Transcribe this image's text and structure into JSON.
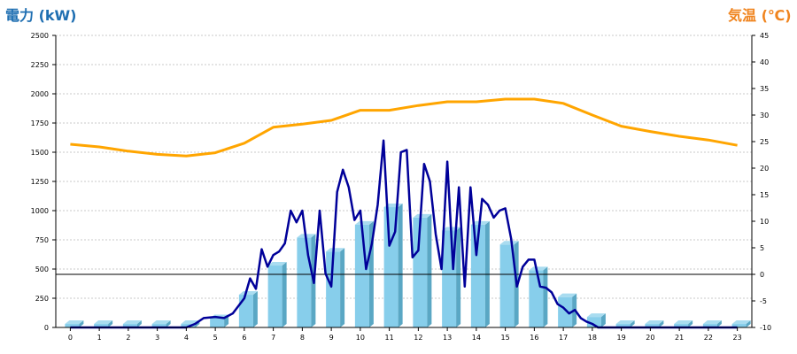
{
  "chart_data": {
    "type": "bar",
    "left_axis_title": "電力 (kW)",
    "right_axis_title": "気温 (℃)",
    "categories": [
      "0",
      "1",
      "2",
      "3",
      "4",
      "5",
      "6",
      "7",
      "8",
      "9",
      "10",
      "11",
      "12",
      "13",
      "14",
      "15",
      "16",
      "17",
      "18",
      "19",
      "20",
      "21",
      "22",
      "23"
    ],
    "y_left": {
      "min": 0,
      "max": 2500,
      "ticks": [
        0,
        250,
        500,
        750,
        1000,
        1250,
        1500,
        1750,
        2000,
        2250,
        2500
      ]
    },
    "y_right": {
      "min": -10,
      "max": 45,
      "ticks": [
        -10,
        -5,
        0,
        5,
        10,
        15,
        20,
        25,
        30,
        35,
        40,
        45
      ]
    },
    "grid": true,
    "reference_line_right_value": 0,
    "bar_series": {
      "values": [
        30,
        30,
        30,
        30,
        30,
        80,
        280,
        530,
        770,
        650,
        880,
        1030,
        940,
        830,
        880,
        710,
        490,
        260,
        90,
        30,
        30,
        30,
        30,
        30
      ]
    },
    "temperature_series": {
      "x": [
        0,
        1,
        2,
        3,
        4,
        5,
        6,
        7,
        8,
        9,
        10,
        11,
        12,
        13,
        14,
        15,
        16,
        17,
        18,
        19,
        20,
        21,
        22,
        23
      ],
      "values": [
        24.5,
        24,
        23.2,
        22.6,
        22.3,
        22.9,
        24.7,
        27.7,
        28.3,
        29,
        30.9,
        30.9,
        31.8,
        32.5,
        32.5,
        33,
        33,
        32.2,
        30,
        27.9,
        26.9,
        26,
        25.3,
        24.3
      ]
    },
    "power_line_series": {
      "x": [
        4,
        4.3,
        4.6,
        5,
        5.3,
        5.6,
        6,
        6.2,
        6.4,
        6.6,
        6.8,
        7,
        7.2,
        7.4,
        7.6,
        7.8,
        8,
        8.2,
        8.4,
        8.6,
        8.8,
        9,
        9.2,
        9.4,
        9.6,
        9.8,
        10,
        10.2,
        10.4,
        10.6,
        10.8,
        11,
        11.2,
        11.4,
        11.6,
        11.8,
        12,
        12.2,
        12.4,
        12.6,
        12.8,
        13,
        13.2,
        13.4,
        13.6,
        13.8,
        14,
        14.2,
        14.4,
        14.6,
        14.8,
        15,
        15.2,
        15.4,
        15.6,
        15.8,
        16,
        16.2,
        16.4,
        16.6,
        16.8,
        17,
        17.2,
        17.4,
        17.6,
        17.8,
        18,
        18.2,
        18.4,
        19,
        20,
        21,
        22,
        23
      ],
      "values": [
        0,
        30,
        80,
        90,
        80,
        120,
        250,
        420,
        330,
        670,
        520,
        620,
        650,
        720,
        1000,
        900,
        1000,
        620,
        380,
        1000,
        460,
        350,
        1160,
        1350,
        1200,
        920,
        1000,
        500,
        720,
        1050,
        1600,
        700,
        820,
        1500,
        1520,
        600,
        660,
        1400,
        1250,
        800,
        500,
        1420,
        500,
        1200,
        350,
        1200,
        620,
        1100,
        1050,
        940,
        1000,
        1020,
        760,
        350,
        520,
        580,
        580,
        350,
        340,
        300,
        200,
        170,
        120,
        150,
        80,
        50,
        30,
        0,
        0,
        0,
        0,
        0,
        0,
        0
      ]
    },
    "colors": {
      "bar": "#87ceeb",
      "bar_side": "#5aa7c4",
      "bar_top": "#a9dcf0",
      "power_line": "#000099",
      "temperature_line": "#ffa500",
      "left_title": "#1f6fb2",
      "right_title": "#f0841e"
    }
  }
}
